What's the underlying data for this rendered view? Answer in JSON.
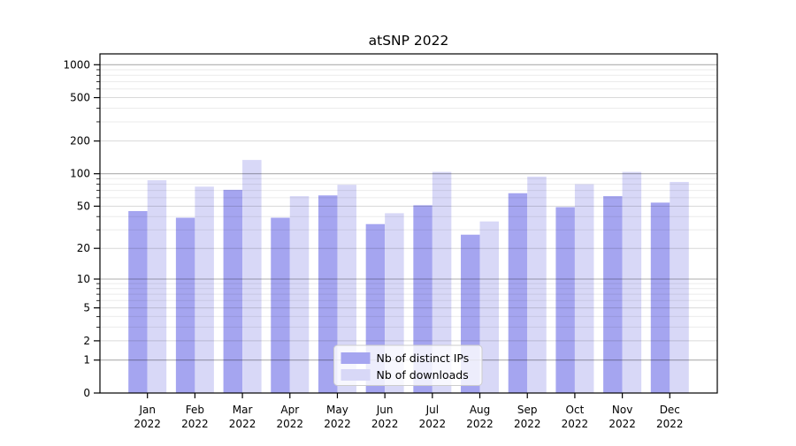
{
  "chart_data": {
    "type": "bar",
    "title": "atSNP 2022",
    "categories": [
      "Jan",
      "Feb",
      "Mar",
      "Apr",
      "May",
      "Jun",
      "Jul",
      "Aug",
      "Sep",
      "Oct",
      "Nov",
      "Dec"
    ],
    "category_year": "2022",
    "series": [
      {
        "name": "Nb of distinct IPs",
        "color": "#a5a5f0",
        "values": [
          45,
          39,
          71,
          39,
          63,
          34,
          51,
          27,
          66,
          49,
          62,
          54
        ]
      },
      {
        "name": "Nb of downloads",
        "color": "#d8d8f7",
        "values": [
          87,
          76,
          134,
          62,
          79,
          43,
          104,
          36,
          94,
          80,
          104,
          84
        ]
      }
    ],
    "yscale": "log1p",
    "ylim": [
      0,
      1260
    ],
    "y_ticks": [
      0,
      1,
      2,
      5,
      10,
      20,
      50,
      100,
      200,
      500,
      1000
    ],
    "y_decade_ticks": [
      1,
      10,
      100,
      1000
    ],
    "y_minor_ticks": [
      3,
      4,
      6,
      7,
      8,
      9,
      30,
      40,
      60,
      70,
      80,
      90,
      300,
      400,
      600,
      700,
      800,
      900
    ],
    "xlabel": "",
    "ylabel": "",
    "grid": true,
    "legend_position": "lower center",
    "colors": {
      "grid_decade": "rgba(0,0,0,0.32)",
      "grid_major": "rgba(0,0,0,0.15)",
      "grid_minor": "rgba(0,0,0,0.08)",
      "spine": "#000000",
      "legend_border": "#cccccc",
      "legend_bg": "rgba(255,255,255,0.8)"
    }
  }
}
